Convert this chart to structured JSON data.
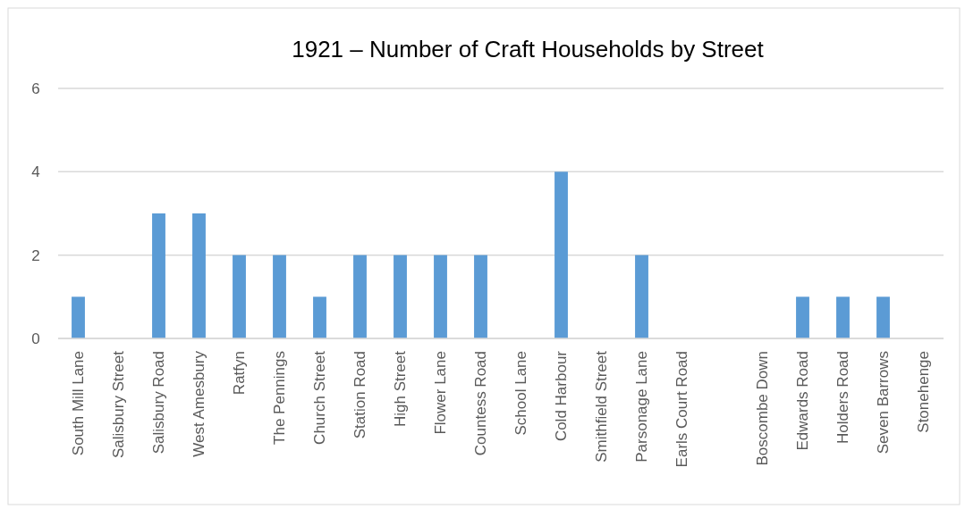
{
  "chart_data": {
    "type": "bar",
    "title": "1921 – Number of Craft Households by Street",
    "categories": [
      "South Mill Lane",
      "Salisbury Street",
      "Salisbury Road",
      "West Amesbury",
      "Ratfyn",
      "The Pennings",
      "Church Street",
      "Station Road",
      "High Street",
      "Flower Lane",
      "Countess Road",
      "School Lane",
      "Cold Harbour",
      "Smithfield Street",
      "Parsonage Lane",
      "Earls Court Road",
      null,
      "Boscombe Down",
      "Edwards Road",
      "Holders Road",
      "Seven Barrows",
      "Stonehenge"
    ],
    "values": [
      1,
      0,
      3,
      3,
      2,
      2,
      1,
      2,
      2,
      2,
      2,
      0,
      4,
      0,
      2,
      0,
      0,
      0,
      1,
      1,
      1,
      0
    ],
    "color": "#5b9bd5",
    "ylim": [
      0,
      6
    ],
    "yticks": [
      0,
      2,
      4,
      6
    ],
    "grid": "y"
  }
}
